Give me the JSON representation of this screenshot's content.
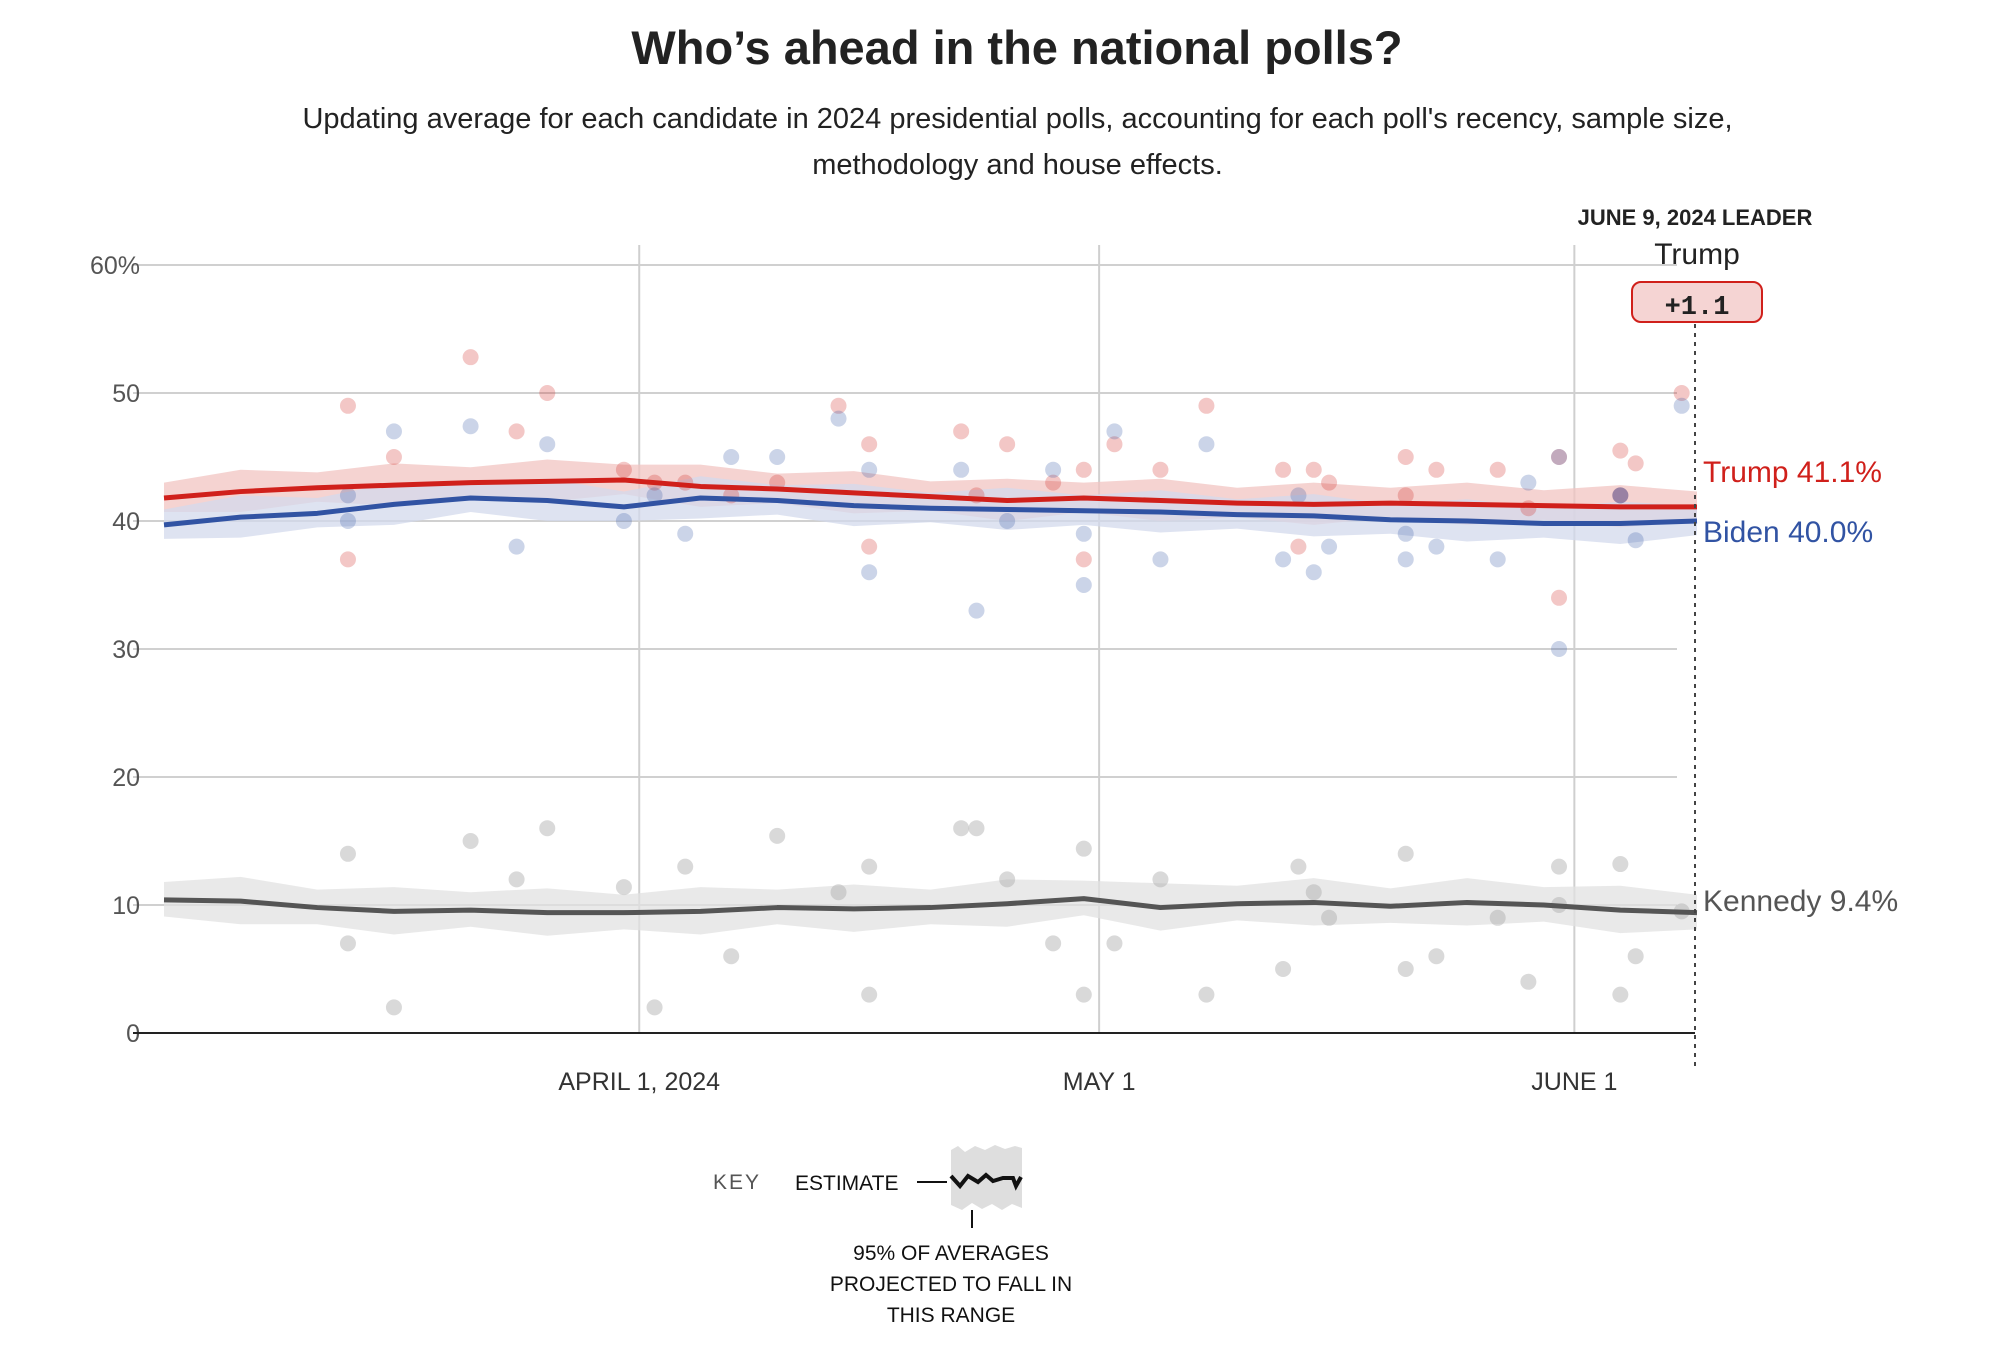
{
  "title": "Who’s ahead in the national polls?",
  "subtitle": "Updating average for each candidate in 2024 presidential polls, accounting for each poll's recency, sample size, methodology and house effects.",
  "leader": {
    "heading": "JUNE 9, 2024 LEADER",
    "name": "Trump",
    "margin": "+1.1"
  },
  "key": {
    "label": "KEY",
    "estimate": "ESTIMATE",
    "range_lines": [
      "95% OF AVERAGES",
      "PROJECTED TO FALL IN",
      "THIS RANGE"
    ]
  },
  "chart_data": {
    "type": "line",
    "title": "Who’s ahead in the national polls?",
    "xlabel": "",
    "ylabel": "",
    "ylim": [
      0,
      60
    ],
    "xlim": [
      "2024-03-01",
      "2024-06-09"
    ],
    "yticks": [
      0,
      10,
      20,
      30,
      40,
      50,
      60
    ],
    "ytick_labels": [
      "0",
      "10",
      "20",
      "30",
      "40",
      "50",
      "60%"
    ],
    "xticks": [
      "2024-04-01",
      "2024-05-01",
      "2024-06-01"
    ],
    "xtick_labels": [
      "APRIL 1, 2024",
      "MAY 1",
      "JUNE 1"
    ],
    "grid": true,
    "dates": [
      "2024-03-01",
      "2024-03-06",
      "2024-03-11",
      "2024-03-16",
      "2024-03-21",
      "2024-03-26",
      "2024-03-31",
      "2024-04-05",
      "2024-04-10",
      "2024-04-15",
      "2024-04-20",
      "2024-04-25",
      "2024-04-30",
      "2024-05-05",
      "2024-05-10",
      "2024-05-15",
      "2024-05-20",
      "2024-05-25",
      "2024-05-30",
      "2024-06-04",
      "2024-06-09"
    ],
    "series": [
      {
        "name": "Trump",
        "end_label": "Trump 41.1%",
        "color": "#d0201b",
        "band_color": "#f2c4c2",
        "ci": 1.4,
        "values": [
          41.8,
          42.3,
          42.6,
          42.8,
          43.0,
          43.1,
          43.2,
          42.7,
          42.5,
          42.2,
          41.9,
          41.6,
          41.8,
          41.6,
          41.4,
          41.3,
          41.4,
          41.3,
          41.2,
          41.1,
          41.1
        ]
      },
      {
        "name": "Biden",
        "end_label": "Biden 40.0%",
        "color": "#3153a3",
        "band_color": "#d3daec",
        "ci": 1.4,
        "values": [
          39.7,
          40.3,
          40.6,
          41.3,
          41.8,
          41.6,
          41.1,
          41.8,
          41.6,
          41.2,
          41.0,
          40.9,
          40.8,
          40.7,
          40.5,
          40.4,
          40.1,
          40.0,
          39.8,
          39.8,
          40.0
        ]
      },
      {
        "name": "Kennedy",
        "end_label": "Kennedy 9.4%",
        "color": "#555555",
        "band_color": "#e2e2e2",
        "ci": 1.6,
        "values": [
          10.4,
          10.3,
          9.8,
          9.5,
          9.6,
          9.4,
          9.4,
          9.5,
          9.8,
          9.7,
          9.8,
          10.1,
          10.5,
          9.8,
          10.1,
          10.2,
          9.9,
          10.2,
          10.0,
          9.6,
          9.4
        ]
      }
    ],
    "polls": [
      {
        "date": "2024-03-13",
        "trump": 49,
        "biden": 42,
        "kennedy": 14
      },
      {
        "date": "2024-03-13",
        "trump": 37,
        "biden": 40,
        "kennedy": 7
      },
      {
        "date": "2024-03-16",
        "trump": 45,
        "biden": 47,
        "kennedy": 2
      },
      {
        "date": "2024-03-21",
        "trump": 52.8,
        "biden": 47.4,
        "kennedy": 15
      },
      {
        "date": "2024-03-24",
        "trump": 47,
        "biden": 38,
        "kennedy": 12
      },
      {
        "date": "2024-03-26",
        "trump": 50,
        "biden": 46,
        "kennedy": 16
      },
      {
        "date": "2024-03-31",
        "trump": 44,
        "biden": 40,
        "kennedy": 11.4
      },
      {
        "date": "2024-04-02",
        "trump": 43,
        "biden": 42,
        "kennedy": 2
      },
      {
        "date": "2024-04-04",
        "trump": 43,
        "biden": 39,
        "kennedy": 13
      },
      {
        "date": "2024-04-07",
        "trump": 42,
        "biden": 45,
        "kennedy": 6
      },
      {
        "date": "2024-04-10",
        "trump": 43,
        "biden": 45,
        "kennedy": 15.4
      },
      {
        "date": "2024-04-14",
        "trump": 49,
        "biden": 48,
        "kennedy": 11
      },
      {
        "date": "2024-04-16",
        "trump": 46,
        "biden": 44,
        "kennedy": 13
      },
      {
        "date": "2024-04-16",
        "trump": 38,
        "biden": 36,
        "kennedy": 3
      },
      {
        "date": "2024-04-22",
        "trump": 47,
        "biden": 44,
        "kennedy": 16
      },
      {
        "date": "2024-04-23",
        "trump": 42,
        "biden": 33,
        "kennedy": 16
      },
      {
        "date": "2024-04-25",
        "trump": 46,
        "biden": 40,
        "kennedy": 12
      },
      {
        "date": "2024-04-28",
        "trump": 43,
        "biden": 44,
        "kennedy": 7
      },
      {
        "date": "2024-04-30",
        "trump": 44,
        "biden": 35,
        "kennedy": 14.4
      },
      {
        "date": "2024-04-30",
        "trump": 37,
        "biden": 39,
        "kennedy": 3
      },
      {
        "date": "2024-05-02",
        "trump": 46,
        "biden": 47,
        "kennedy": 7
      },
      {
        "date": "2024-05-05",
        "trump": 44,
        "biden": 37,
        "kennedy": 12
      },
      {
        "date": "2024-05-08",
        "trump": 49,
        "biden": 46,
        "kennedy": 3
      },
      {
        "date": "2024-05-13",
        "trump": 44,
        "biden": 37,
        "kennedy": 5
      },
      {
        "date": "2024-05-14",
        "trump": 38,
        "biden": 42,
        "kennedy": 13
      },
      {
        "date": "2024-05-15",
        "trump": 44,
        "biden": 36,
        "kennedy": 11
      },
      {
        "date": "2024-05-16",
        "trump": 43,
        "biden": 38,
        "kennedy": 9
      },
      {
        "date": "2024-05-21",
        "trump": 45,
        "biden": 39,
        "kennedy": 14
      },
      {
        "date": "2024-05-21",
        "trump": 42,
        "biden": 37,
        "kennedy": 5
      },
      {
        "date": "2024-05-23",
        "trump": 44,
        "biden": 38,
        "kennedy": 6
      },
      {
        "date": "2024-05-27",
        "trump": 44,
        "biden": 37,
        "kennedy": 9
      },
      {
        "date": "2024-05-29",
        "trump": 41,
        "biden": 43,
        "kennedy": 4
      },
      {
        "date": "2024-05-31",
        "trump": 45,
        "biden": 45,
        "kennedy": 13
      },
      {
        "date": "2024-05-31",
        "trump": 34,
        "biden": 30,
        "kennedy": 10
      },
      {
        "date": "2024-06-04",
        "trump": 45.5,
        "biden": 42,
        "kennedy": 13.2
      },
      {
        "date": "2024-06-05",
        "trump": 44.5,
        "biden": 38.5,
        "kennedy": 6
      },
      {
        "date": "2024-06-04",
        "trump": 42,
        "biden": 42,
        "kennedy": 3
      },
      {
        "date": "2024-06-08",
        "trump": 50,
        "biden": 49,
        "kennedy": 9.5
      }
    ]
  }
}
